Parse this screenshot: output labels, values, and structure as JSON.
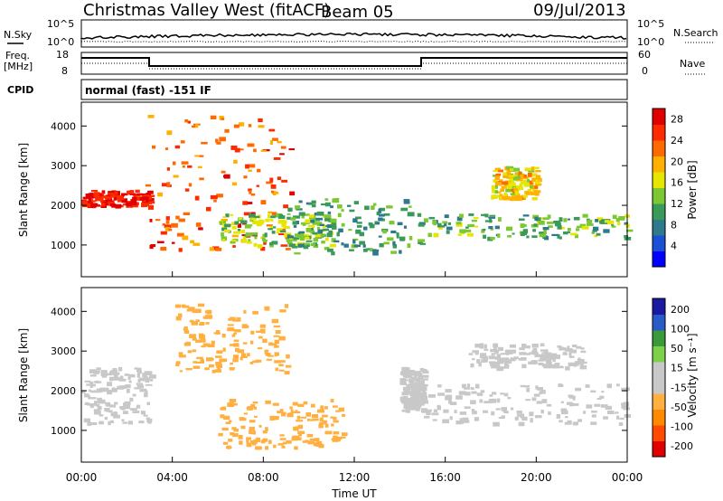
{
  "header": {
    "station": "Christmas Valley West (fitACF)",
    "beam": "Beam 05",
    "date": "09/Jul/2013"
  },
  "noise_panel": {
    "left_label": "N.Sky",
    "right_label": "N.Search",
    "left_ticks": [
      "10^5",
      "10^0"
    ],
    "right_ticks": [
      "10^5",
      "10^0"
    ]
  },
  "freq_panel": {
    "left_label_1": "Freq.",
    "left_label_2": "[MHz]",
    "right_label": "Nave",
    "left_ticks": [
      "18",
      "8"
    ],
    "right_ticks": [
      "60",
      "0"
    ]
  },
  "cpid_panel": {
    "label": "CPID",
    "text": "normal (fast) -151 IF"
  },
  "x_axis": {
    "title": "Time UT",
    "ticks": [
      "00:00",
      "04:00",
      "08:00",
      "12:00",
      "16:00",
      "20:00",
      "00:00"
    ]
  },
  "colors": {
    "power": [
      "#0000ff",
      "#1a4fd6",
      "#2e7a8c",
      "#3a9a5a",
      "#7cc832",
      "#e6e600",
      "#ffb000",
      "#ff6a00",
      "#ff2a00",
      "#e00000"
    ],
    "velocity": [
      "#e00000",
      "#ff4a00",
      "#ff8a00",
      "#ffb040",
      "#c8c8c8",
      "#c8c8c8",
      "#7cd04a",
      "#3a9a3a",
      "#2a5ac8",
      "#1a1aa0"
    ]
  },
  "chart_data": [
    {
      "type": "heatmap",
      "panel": "power",
      "ylabel": "Slant Range [km]",
      "yticks": [
        "1000",
        "2000",
        "3000",
        "4000"
      ],
      "ylim": [
        200,
        4600
      ],
      "xlim_hours": [
        0,
        24
      ],
      "colorbar_label": "Power [dB]",
      "colorbar_ticks": [
        "4",
        "8",
        "12",
        "16",
        "20",
        "24",
        "28"
      ],
      "clim": [
        0,
        30
      ],
      "bands": [
        {
          "t": [
            0,
            3
          ],
          "r": [
            2000,
            2400
          ],
          "value": 28
        },
        {
          "t": [
            2.8,
            9.2
          ],
          "r": [
            900,
            4300
          ],
          "value": 24
        },
        {
          "t": [
            6,
            11
          ],
          "r": [
            1000,
            1800
          ],
          "value": 14
        },
        {
          "t": [
            9,
            15
          ],
          "r": [
            800,
            2200
          ],
          "value": 10
        },
        {
          "t": [
            15,
            24
          ],
          "r": [
            1200,
            1800
          ],
          "value": 12
        },
        {
          "t": [
            18,
            20
          ],
          "r": [
            2200,
            3000
          ],
          "value": 18
        }
      ]
    },
    {
      "type": "heatmap",
      "panel": "velocity",
      "ylabel": "Slant Range [km]",
      "yticks": [
        "1000",
        "2000",
        "3000",
        "4000"
      ],
      "ylim": [
        200,
        4600
      ],
      "xlim_hours": [
        0,
        24
      ],
      "colorbar_label": "Velocity [m s⁻¹]",
      "colorbar_ticks": [
        "200",
        "100",
        "50",
        "15",
        "-15",
        "-50",
        "-100",
        "-200"
      ],
      "clim": [
        -250,
        250
      ],
      "bands": [
        {
          "t": [
            0,
            3
          ],
          "r": [
            1200,
            2600
          ],
          "value": 0
        },
        {
          "t": [
            4,
            9
          ],
          "r": [
            2500,
            4200
          ],
          "value": -60
        },
        {
          "t": [
            6,
            11.5
          ],
          "r": [
            600,
            1800
          ],
          "value": -80
        },
        {
          "t": [
            14,
            15
          ],
          "r": [
            1500,
            2600
          ],
          "value": 40
        },
        {
          "t": [
            15,
            24
          ],
          "r": [
            1200,
            2200
          ],
          "value": 0
        },
        {
          "t": [
            17,
            22
          ],
          "r": [
            2600,
            3200
          ],
          "value": 0
        }
      ]
    }
  ]
}
